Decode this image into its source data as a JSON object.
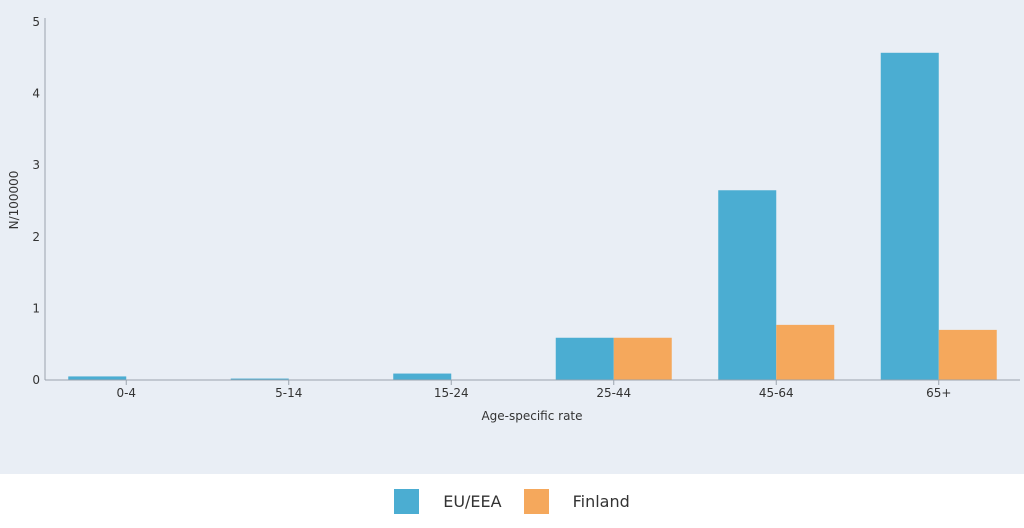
{
  "chart_data": {
    "type": "bar",
    "title": "",
    "xlabel": "Age-specific rate",
    "ylabel": "N/100000",
    "categories": [
      "0-4",
      "5-14",
      "15-24",
      "25-44",
      "45-64",
      "65+"
    ],
    "ylim": [
      0,
      5
    ],
    "yticks": [
      0,
      1,
      2,
      3,
      4,
      5
    ],
    "grid": false,
    "legend_position": "bottom",
    "series": [
      {
        "name": "EU/EEA",
        "color": "#4badd2",
        "values": [
          0.05,
          0.02,
          0.09,
          0.59,
          2.65,
          4.57
        ]
      },
      {
        "name": "Finland",
        "color": "#f5a85c",
        "values": [
          0,
          0,
          0,
          0.59,
          0.77,
          0.7
        ]
      }
    ]
  }
}
